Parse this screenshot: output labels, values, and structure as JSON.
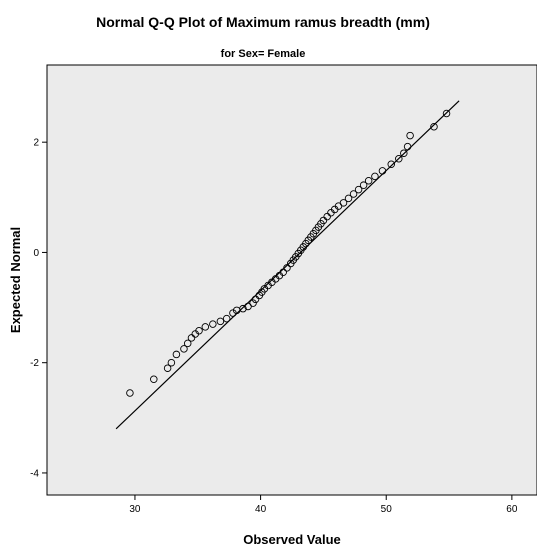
{
  "chart_data": {
    "type": "scatter",
    "title": "Normal Q-Q Plot of Maximum ramus breadth (mm)",
    "subtitle": "for Sex= Female",
    "xlabel": "Observed Value",
    "ylabel": "Expected Normal",
    "xlim": [
      23,
      62
    ],
    "ylim": [
      -4.4,
      3.4
    ],
    "xticks": [
      30,
      40,
      50,
      60
    ],
    "yticks": [
      2,
      0,
      -2,
      -4
    ],
    "grid": false,
    "background_color": "#ebebeb",
    "reference_line": {
      "x": [
        28.5,
        55.8
      ],
      "y": [
        -3.2,
        2.75
      ],
      "color": "#000000"
    },
    "series": [
      {
        "marker": "open-circle",
        "color": "#000000",
        "x": [
          29.6,
          31.5,
          32.6,
          32.9,
          33.3,
          33.9,
          34.2,
          34.5,
          34.8,
          35.1,
          35.6,
          36.2,
          36.8,
          37.3,
          37.8,
          38.1,
          38.6,
          39.0,
          39.4,
          39.6,
          39.9,
          40.1,
          40.3,
          40.6,
          40.9,
          41.2,
          41.5,
          41.8,
          42.1,
          42.4,
          42.6,
          42.8,
          43.0,
          43.2,
          43.4,
          43.6,
          43.8,
          44.0,
          44.2,
          44.4,
          44.6,
          44.8,
          45.0,
          45.3,
          45.6,
          45.9,
          46.2,
          46.6,
          47.0,
          47.4,
          47.8,
          48.2,
          48.6,
          49.1,
          49.7,
          50.4,
          51.0,
          51.4,
          51.7,
          51.9,
          53.8,
          54.8
        ],
        "y": [
          -2.55,
          -2.3,
          -2.1,
          -2.0,
          -1.85,
          -1.75,
          -1.65,
          -1.55,
          -1.48,
          -1.42,
          -1.35,
          -1.3,
          -1.25,
          -1.2,
          -1.1,
          -1.05,
          -1.02,
          -0.98,
          -0.92,
          -0.85,
          -0.78,
          -0.72,
          -0.66,
          -0.6,
          -0.54,
          -0.48,
          -0.42,
          -0.36,
          -0.28,
          -0.2,
          -0.14,
          -0.08,
          -0.02,
          0.04,
          0.1,
          0.16,
          0.22,
          0.28,
          0.34,
          0.4,
          0.46,
          0.52,
          0.58,
          0.65,
          0.72,
          0.78,
          0.84,
          0.9,
          0.98,
          1.06,
          1.14,
          1.22,
          1.3,
          1.38,
          1.48,
          1.6,
          1.7,
          1.8,
          1.92,
          2.12,
          2.28,
          2.52
        ]
      }
    ]
  }
}
